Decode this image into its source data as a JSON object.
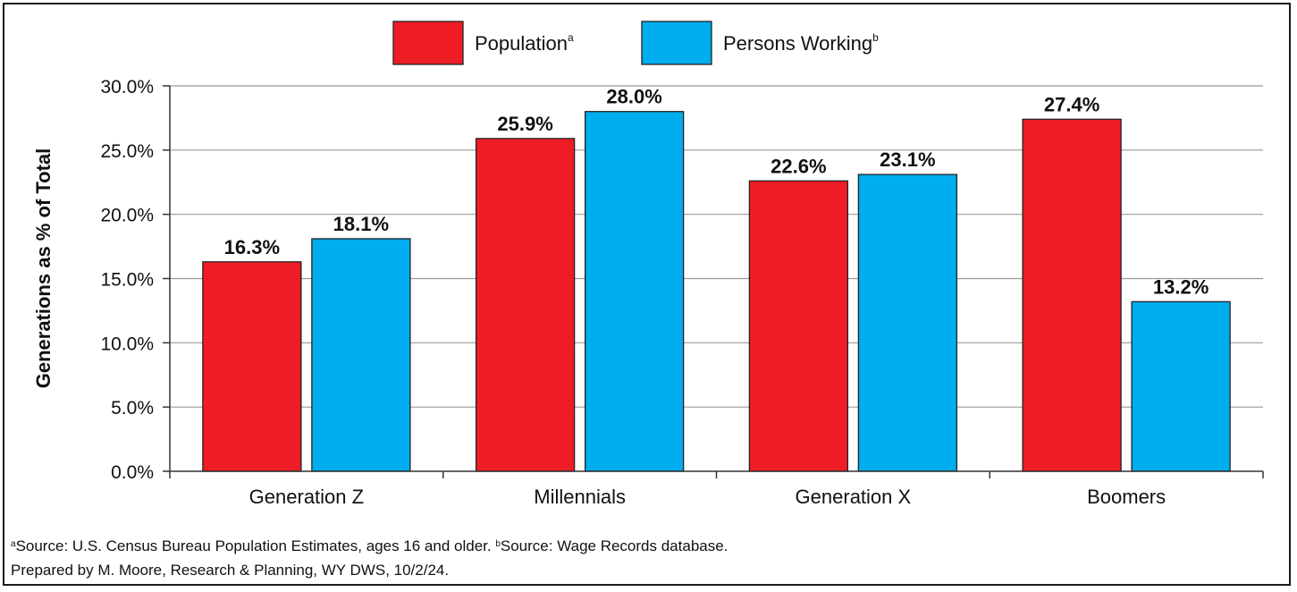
{
  "chart_data": {
    "type": "bar",
    "categories": [
      "Generation Z",
      "Millennials",
      "Generation X",
      "Boomers"
    ],
    "series": [
      {
        "name": "Population",
        "name_sup": "a",
        "color": "#ee1d25",
        "values": [
          16.3,
          25.9,
          22.6,
          27.4
        ],
        "labels": [
          "16.3%",
          "25.9%",
          "22.6%",
          "27.4%"
        ]
      },
      {
        "name": "Persons Working",
        "name_sup": "b",
        "color": "#00adef",
        "values": [
          18.1,
          28.0,
          23.1,
          13.2
        ],
        "labels": [
          "18.1%",
          "28.0%",
          "23.1%",
          "13.2%"
        ]
      }
    ],
    "ylabel": "Generations as % of Total",
    "ylim": [
      0,
      30
    ],
    "yticks": [
      0,
      5,
      10,
      15,
      20,
      25,
      30
    ],
    "ytick_labels": [
      "0.0%",
      "5.0%",
      "10.0%",
      "15.0%",
      "20.0%",
      "25.0%",
      "30.0%"
    ],
    "grid": true,
    "legend_position": "top-center"
  },
  "footnotes": {
    "line1_sup_a": "a",
    "line1_a": "Source: U.S. Census Bureau Population Estimates, ages 16 and older. ",
    "line1_sup_b": "b",
    "line1_b": "Source: Wage Records database.",
    "line2": "Prepared by M. Moore, Research & Planning, WY DWS, 10/2/24."
  }
}
